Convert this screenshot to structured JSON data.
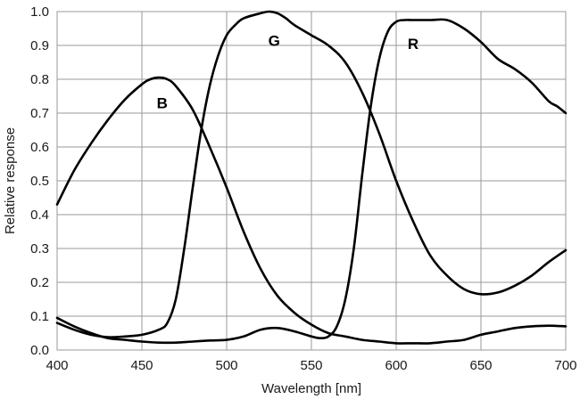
{
  "chart_data": {
    "type": "line",
    "xlabel": "Wavelength [nm]",
    "ylabel": "Relative response",
    "xlim": [
      400,
      700
    ],
    "ylim": [
      0,
      1.0
    ],
    "xticks": [
      400,
      450,
      500,
      550,
      600,
      650,
      700
    ],
    "yticks": [
      0.0,
      0.1,
      0.2,
      0.3,
      0.4,
      0.5,
      0.6,
      0.7,
      0.8,
      0.9,
      1.0
    ],
    "xtick_labels": [
      "400",
      "450",
      "500",
      "550",
      "600",
      "650",
      "700"
    ],
    "ytick_labels": [
      "0.0",
      "0.1",
      "0.2",
      "0.3",
      "0.4",
      "0.5",
      "0.6",
      "0.7",
      "0.8",
      "0.9",
      "1.0"
    ],
    "grid": true,
    "line_color": "#000000",
    "series": [
      {
        "name": "B",
        "label_at": [
          462,
          0.73
        ],
        "x": [
          400,
          410,
          420,
          430,
          440,
          450,
          455,
          460,
          465,
          470,
          480,
          490,
          500,
          510,
          520,
          530,
          540,
          550,
          560,
          570,
          580,
          590,
          600,
          610,
          620,
          630,
          640,
          650,
          660,
          670,
          680,
          690,
          700
        ],
        "y": [
          0.43,
          0.53,
          0.61,
          0.68,
          0.74,
          0.785,
          0.8,
          0.805,
          0.8,
          0.78,
          0.71,
          0.6,
          0.48,
          0.35,
          0.24,
          0.16,
          0.11,
          0.075,
          0.05,
          0.04,
          0.03,
          0.025,
          0.02,
          0.02,
          0.02,
          0.025,
          0.03,
          0.045,
          0.055,
          0.065,
          0.07,
          0.072,
          0.07
        ]
      },
      {
        "name": "G",
        "label_at": [
          528,
          0.915
        ],
        "x": [
          400,
          410,
          420,
          430,
          440,
          450,
          460,
          465,
          470,
          475,
          480,
          485,
          490,
          495,
          500,
          505,
          510,
          520,
          525,
          530,
          535,
          540,
          550,
          560,
          570,
          580,
          590,
          600,
          610,
          620,
          630,
          640,
          650,
          660,
          670,
          680,
          690,
          700
        ],
        "y": [
          0.08,
          0.06,
          0.045,
          0.038,
          0.04,
          0.045,
          0.06,
          0.08,
          0.15,
          0.3,
          0.48,
          0.65,
          0.78,
          0.87,
          0.93,
          0.96,
          0.98,
          0.995,
          1.0,
          0.995,
          0.98,
          0.96,
          0.93,
          0.9,
          0.85,
          0.76,
          0.64,
          0.5,
          0.38,
          0.28,
          0.22,
          0.18,
          0.165,
          0.17,
          0.19,
          0.22,
          0.26,
          0.295
        ]
      },
      {
        "name": "R",
        "label_at": [
          610,
          0.905
        ],
        "x": [
          400,
          410,
          420,
          430,
          440,
          450,
          460,
          470,
          480,
          490,
          500,
          510,
          520,
          530,
          540,
          550,
          555,
          560,
          565,
          570,
          575,
          580,
          585,
          590,
          595,
          600,
          605,
          610,
          620,
          630,
          640,
          650,
          660,
          670,
          680,
          690,
          695,
          700
        ],
        "y": [
          0.095,
          0.07,
          0.05,
          0.035,
          0.03,
          0.025,
          0.022,
          0.022,
          0.025,
          0.028,
          0.03,
          0.04,
          0.06,
          0.065,
          0.055,
          0.04,
          0.035,
          0.04,
          0.07,
          0.15,
          0.3,
          0.52,
          0.72,
          0.86,
          0.94,
          0.97,
          0.975,
          0.975,
          0.975,
          0.975,
          0.95,
          0.91,
          0.86,
          0.83,
          0.79,
          0.735,
          0.72,
          0.7
        ]
      }
    ]
  }
}
